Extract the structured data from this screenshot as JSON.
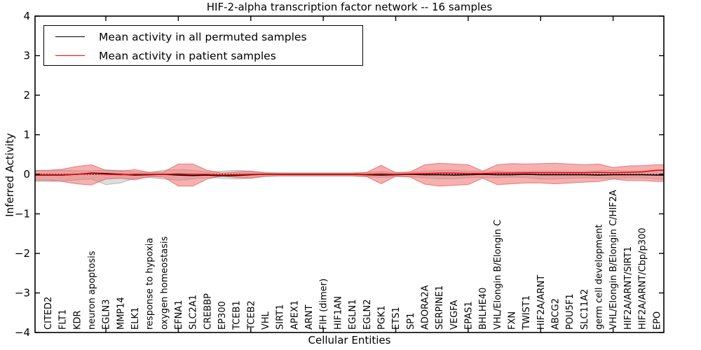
{
  "chart_data": {
    "type": "line",
    "title": "HIF-2-alpha transcription factor network -- 16 samples",
    "xlabel": "Cellular Entities",
    "ylabel": "Inferred Activity",
    "ylim": [
      -4,
      4
    ],
    "yticks": [
      4,
      3,
      2,
      1,
      0,
      -1,
      -2,
      -3,
      -4
    ],
    "ytick_labels": [
      "4",
      "3",
      "2",
      "1",
      "0",
      "−1",
      "−2",
      "−3",
      "−4"
    ],
    "grid": false,
    "legend_position": "upper left",
    "zero_reference_line": {
      "y": 0,
      "style": "dotted",
      "color": "#000000"
    },
    "x_tick_category_indices": [
      4,
      9,
      14,
      19,
      24,
      29,
      34,
      39
    ],
    "categories": [
      "CITED2",
      "FLT1",
      "KDR",
      "neuron apoptosis",
      "EGLN3",
      "MMP14",
      "ELK1",
      "response to hypoxia",
      "oxygen homeostasis",
      "EFNA1",
      "SLC2A1",
      "CREBBP",
      "EP300",
      "TCEB1",
      "TCEB2",
      "VHL",
      "SIRT1",
      "APEX1",
      "ARNT",
      "FIH (dimer)",
      "HIF1AN",
      "EGLN1",
      "EGLN2",
      "PGK1",
      "ETS1",
      "SP1",
      "ADORA2A",
      "SERPINE1",
      "VEGFA",
      "EPAS1",
      "BHLHE40",
      "VHL/Elongin B/Elongin C",
      "FXN",
      "TWIST1",
      "HIF2A/ARNT",
      "ABCG2",
      "POU5F1",
      "SLC11A2",
      "germ cell development",
      "VHL/Elongin B/Elongin C/HIF2A",
      "HIF2A/ARNT/SIRT1",
      "HIF2A/ARNT/Cbp/p300",
      "EPO"
    ],
    "series": [
      {
        "name": "Mean activity in all permuted samples",
        "role": "permuted",
        "line_color": "#000000",
        "band_fill": "#aaaaaa",
        "band_stroke": "#8c8c8c",
        "band_opacity": 0.4,
        "mean": [
          -0.02,
          -0.02,
          0.0,
          0.03,
          0.02,
          0.0,
          -0.02,
          -0.01,
          0.0,
          -0.02,
          -0.03,
          -0.02,
          -0.04,
          -0.03,
          -0.01,
          0.0,
          0.0,
          0.0,
          0.0,
          0.0,
          0.0,
          0.0,
          -0.01,
          -0.02,
          -0.01,
          0.0,
          -0.01,
          -0.01,
          -0.02,
          -0.01,
          0.0,
          -0.01,
          -0.01,
          0.0,
          -0.01,
          -0.01,
          -0.01,
          -0.01,
          -0.02,
          -0.01,
          -0.01,
          -0.01,
          -0.02
        ],
        "band_upper": [
          0.1,
          0.1,
          0.09,
          0.09,
          0.11,
          0.1,
          0.06,
          0.05,
          0.1,
          0.12,
          0.1,
          0.06,
          0.08,
          0.1,
          0.08,
          0.05,
          0.04,
          0.04,
          0.04,
          0.04,
          0.04,
          0.04,
          0.05,
          0.07,
          0.05,
          0.05,
          0.08,
          0.1,
          0.1,
          0.08,
          0.07,
          0.08,
          0.06,
          0.07,
          0.08,
          0.08,
          0.07,
          0.07,
          0.09,
          0.1,
          0.08,
          0.08,
          0.11
        ],
        "band_lower": [
          -0.18,
          -0.17,
          -0.14,
          -0.12,
          -0.26,
          -0.22,
          -0.1,
          -0.08,
          -0.12,
          -0.15,
          -0.12,
          -0.08,
          -0.1,
          -0.12,
          -0.1,
          -0.06,
          -0.05,
          -0.05,
          -0.05,
          -0.05,
          -0.05,
          -0.05,
          -0.06,
          -0.08,
          -0.06,
          -0.06,
          -0.09,
          -0.11,
          -0.11,
          -0.09,
          -0.08,
          -0.09,
          -0.07,
          -0.08,
          -0.12,
          -0.12,
          -0.1,
          -0.09,
          -0.1,
          -0.1,
          -0.09,
          -0.09,
          -0.12
        ]
      },
      {
        "name": "Mean activity in patient samples",
        "role": "patient",
        "line_color": "#ff0000",
        "band_fill": "#ee7070",
        "band_stroke": "#e05555",
        "band_opacity": 0.55,
        "mean": [
          -0.01,
          -0.01,
          0.0,
          0.02,
          0.0,
          -0.01,
          0.0,
          0.0,
          0.0,
          0.01,
          0.0,
          0.0,
          -0.02,
          -0.01,
          0.0,
          0.0,
          0.0,
          0.0,
          0.0,
          0.0,
          0.0,
          0.0,
          0.0,
          0.01,
          0.0,
          0.01,
          0.02,
          0.03,
          0.03,
          0.02,
          0.02,
          0.03,
          0.03,
          0.04,
          0.04,
          0.04,
          0.04,
          0.04,
          0.05,
          0.04,
          0.05,
          0.06,
          0.1
        ],
        "band_upper": [
          0.1,
          0.13,
          0.2,
          0.24,
          0.1,
          0.08,
          0.12,
          0.05,
          0.06,
          0.26,
          0.26,
          0.1,
          0.03,
          0.06,
          0.08,
          0.03,
          0.02,
          0.02,
          0.02,
          0.02,
          0.02,
          0.02,
          0.05,
          0.23,
          0.04,
          0.06,
          0.24,
          0.28,
          0.26,
          0.24,
          0.08,
          0.24,
          0.27,
          0.26,
          0.27,
          0.28,
          0.26,
          0.24,
          0.26,
          0.17,
          0.21,
          0.22,
          0.24
        ],
        "band_lower": [
          -0.15,
          -0.18,
          -0.24,
          -0.27,
          -0.12,
          -0.1,
          -0.14,
          -0.06,
          -0.07,
          -0.3,
          -0.3,
          -0.12,
          -0.04,
          -0.08,
          -0.1,
          -0.04,
          -0.03,
          -0.03,
          -0.03,
          -0.03,
          -0.03,
          -0.03,
          -0.06,
          -0.24,
          -0.05,
          -0.07,
          -0.25,
          -0.3,
          -0.28,
          -0.26,
          -0.1,
          -0.26,
          -0.24,
          -0.22,
          -0.22,
          -0.24,
          -0.22,
          -0.2,
          -0.18,
          -0.12,
          -0.16,
          -0.16,
          -0.18
        ]
      }
    ]
  }
}
